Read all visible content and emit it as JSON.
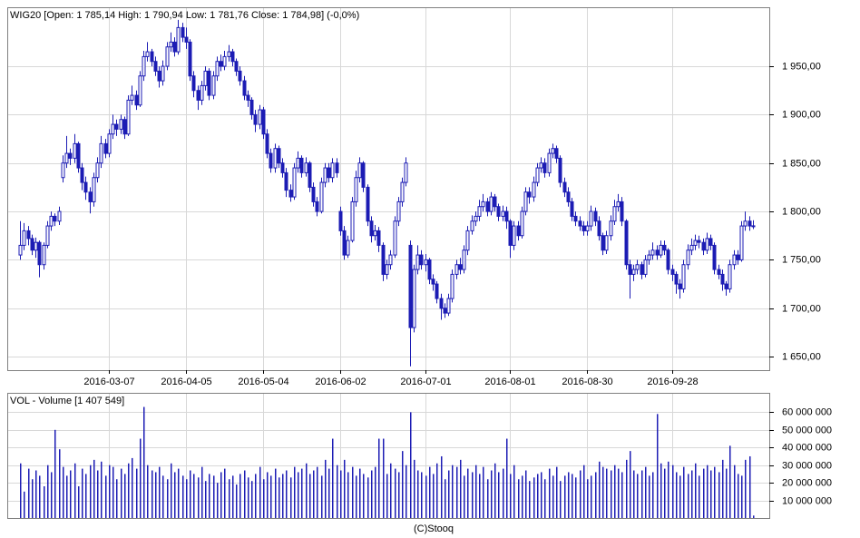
{
  "chart_data": [
    {
      "type": "candlestick",
      "title": "WIG20 [Open: 1 785,14  High: 1 790,94  Low: 1 781,76  Close: 1 784,98] (-0,0%)",
      "color": "#1c1cb4",
      "categories": [
        null,
        null,
        null,
        null,
        null,
        null,
        null,
        null,
        null,
        null,
        null,
        null,
        null,
        null,
        null,
        null,
        null,
        null,
        null,
        null,
        null,
        null,
        null,
        "2016-03-07",
        null,
        null,
        null,
        null,
        null,
        null,
        null,
        null,
        null,
        null,
        null,
        null,
        null,
        null,
        null,
        null,
        null,
        null,
        null,
        "2016-04-05",
        null,
        null,
        null,
        null,
        null,
        null,
        null,
        null,
        null,
        null,
        null,
        null,
        null,
        null,
        null,
        null,
        null,
        null,
        null,
        "2016-05-04",
        null,
        null,
        null,
        null,
        null,
        null,
        null,
        null,
        null,
        null,
        null,
        null,
        null,
        null,
        null,
        null,
        null,
        null,
        null,
        "2016-06-02",
        null,
        null,
        null,
        null,
        null,
        null,
        null,
        null,
        null,
        null,
        null,
        null,
        null,
        null,
        null,
        null,
        null,
        null,
        null,
        null,
        null,
        "2016-07-01",
        null,
        null,
        null,
        null,
        null,
        null,
        null,
        null,
        null,
        null,
        null,
        null,
        null,
        null,
        null,
        null,
        null,
        null,
        null,
        null,
        null,
        "2016-08-01",
        null,
        null,
        null,
        null,
        null,
        null,
        null,
        null,
        null,
        null,
        null,
        null,
        null,
        null,
        null,
        null,
        null,
        null,
        null,
        "2016-08-30",
        null,
        null,
        null,
        null,
        null,
        null,
        null,
        null,
        null,
        null,
        null,
        null,
        null,
        null,
        null,
        null,
        null,
        null,
        null,
        null,
        null,
        "2016-09-28",
        null,
        null,
        null,
        null,
        null,
        null,
        null,
        null,
        null,
        null,
        null,
        null,
        null,
        null,
        null,
        null,
        null,
        null,
        null,
        null,
        null
      ],
      "open": [
        1755,
        1765,
        1780,
        1772,
        1760,
        1768,
        1745,
        1765,
        1785,
        1795,
        1790,
        1835,
        1850,
        1860,
        1855,
        1870,
        1845,
        1830,
        1820,
        1810,
        1835,
        1850,
        1870,
        1860,
        1880,
        1890,
        1885,
        1895,
        1880,
        1915,
        1920,
        1910,
        1940,
        1960,
        1965,
        1955,
        1945,
        1935,
        1950,
        1970,
        1975,
        1965,
        1990,
        1980,
        1975,
        1940,
        1925,
        1915,
        1930,
        1945,
        1920,
        1940,
        1955,
        1950,
        1960,
        1965,
        1955,
        1945,
        1935,
        1920,
        1915,
        1900,
        1890,
        1905,
        1880,
        1860,
        1845,
        1865,
        1850,
        1840,
        1822,
        1815,
        1845,
        1855,
        1840,
        1850,
        1825,
        1810,
        1800,
        1830,
        1845,
        1835,
        1850,
        1800,
        1780,
        1755,
        1770,
        1810,
        1835,
        1850,
        1825,
        1790,
        1775,
        1780,
        1765,
        1735,
        1745,
        1755,
        1790,
        1810,
        1830,
        1765,
        1680,
        1740,
        1755,
        1745,
        1750,
        1730,
        1725,
        1710,
        1700,
        1695,
        1710,
        1735,
        1745,
        1740,
        1760,
        1780,
        1790,
        1795,
        1805,
        1810,
        1800,
        1815,
        1805,
        1795,
        1800,
        1790,
        1765,
        1785,
        1775,
        1800,
        1820,
        1815,
        1830,
        1845,
        1850,
        1840,
        1860,
        1865,
        1855,
        1830,
        1820,
        1810,
        1795,
        1790,
        1785,
        1780,
        1785,
        1800,
        1790,
        1775,
        1760,
        1775,
        1790,
        1805,
        1810,
        1790,
        1745,
        1735,
        1740,
        1745,
        1735,
        1750,
        1755,
        1760,
        1755,
        1765,
        1760,
        1740,
        1735,
        1725,
        1720,
        1745,
        1760,
        1765,
        1770,
        1768,
        1760,
        1772,
        1765,
        1740,
        1735,
        1725,
        1720,
        1745,
        1755,
        1750,
        1785,
        1790,
        1785.14
      ],
      "high": [
        1790,
        1788,
        1785,
        1776,
        1773,
        1770,
        1768,
        1790,
        1800,
        1798,
        1805,
        1858,
        1878,
        1865,
        1880,
        1872,
        1850,
        1836,
        1825,
        1840,
        1856,
        1878,
        1875,
        1885,
        1900,
        1895,
        1900,
        1898,
        1920,
        1930,
        1925,
        1945,
        1966,
        1975,
        1968,
        1960,
        1950,
        1956,
        1975,
        1985,
        1980,
        1998,
        1995,
        1990,
        1978,
        1945,
        1930,
        1935,
        1950,
        1948,
        1945,
        1960,
        1962,
        1966,
        1972,
        1968,
        1958,
        1950,
        1940,
        1925,
        1918,
        1905,
        1910,
        1908,
        1885,
        1865,
        1870,
        1868,
        1855,
        1845,
        1828,
        1850,
        1862,
        1858,
        1856,
        1852,
        1830,
        1815,
        1835,
        1850,
        1850,
        1855,
        1855,
        1805,
        1785,
        1775,
        1815,
        1842,
        1856,
        1852,
        1828,
        1795,
        1786,
        1784,
        1768,
        1750,
        1760,
        1795,
        1815,
        1835,
        1856,
        1770,
        1745,
        1765,
        1760,
        1756,
        1752,
        1735,
        1728,
        1715,
        1705,
        1715,
        1740,
        1750,
        1752,
        1765,
        1785,
        1796,
        1800,
        1812,
        1818,
        1814,
        1820,
        1818,
        1808,
        1806,
        1805,
        1792,
        1790,
        1790,
        1805,
        1825,
        1825,
        1836,
        1850,
        1856,
        1855,
        1865,
        1870,
        1868,
        1858,
        1835,
        1825,
        1814,
        1800,
        1795,
        1790,
        1790,
        1806,
        1804,
        1795,
        1778,
        1780,
        1796,
        1812,
        1818,
        1815,
        1792,
        1750,
        1745,
        1750,
        1748,
        1755,
        1760,
        1768,
        1765,
        1770,
        1770,
        1762,
        1745,
        1738,
        1730,
        1750,
        1766,
        1772,
        1776,
        1775,
        1772,
        1778,
        1776,
        1768,
        1745,
        1740,
        1728,
        1750,
        1760,
        1760,
        1790,
        1800,
        1795,
        1790.94
      ],
      "low": [
        1750,
        1760,
        1765,
        1755,
        1752,
        1732,
        1740,
        1762,
        1780,
        1785,
        1786,
        1830,
        1845,
        1848,
        1850,
        1840,
        1822,
        1812,
        1798,
        1805,
        1830,
        1845,
        1855,
        1856,
        1875,
        1878,
        1880,
        1875,
        1878,
        1910,
        1905,
        1908,
        1935,
        1955,
        1950,
        1940,
        1928,
        1930,
        1946,
        1965,
        1960,
        1962,
        1975,
        1968,
        1935,
        1918,
        1905,
        1910,
        1925,
        1915,
        1916,
        1935,
        1945,
        1946,
        1955,
        1950,
        1940,
        1930,
        1915,
        1908,
        1895,
        1882,
        1885,
        1875,
        1855,
        1840,
        1840,
        1845,
        1835,
        1815,
        1810,
        1812,
        1840,
        1835,
        1836,
        1820,
        1805,
        1795,
        1798,
        1825,
        1830,
        1830,
        1835,
        1775,
        1750,
        1752,
        1768,
        1805,
        1830,
        1820,
        1785,
        1768,
        1770,
        1758,
        1728,
        1730,
        1740,
        1752,
        1785,
        1805,
        1826,
        1640,
        1675,
        1735,
        1740,
        1738,
        1725,
        1718,
        1705,
        1688,
        1690,
        1692,
        1706,
        1730,
        1735,
        1736,
        1755,
        1776,
        1785,
        1790,
        1800,
        1795,
        1796,
        1800,
        1790,
        1790,
        1782,
        1752,
        1760,
        1770,
        1772,
        1796,
        1808,
        1810,
        1826,
        1840,
        1835,
        1836,
        1855,
        1850,
        1825,
        1815,
        1805,
        1790,
        1785,
        1780,
        1775,
        1775,
        1780,
        1785,
        1770,
        1755,
        1756,
        1770,
        1786,
        1800,
        1785,
        1740,
        1710,
        1728,
        1735,
        1730,
        1732,
        1745,
        1750,
        1750,
        1752,
        1755,
        1735,
        1728,
        1715,
        1710,
        1716,
        1740,
        1755,
        1760,
        1762,
        1755,
        1756,
        1760,
        1735,
        1730,
        1718,
        1713,
        1716,
        1740,
        1745,
        1748,
        1780,
        1780,
        1781.76
      ],
      "close": [
        1765,
        1780,
        1772,
        1760,
        1768,
        1745,
        1765,
        1785,
        1795,
        1790,
        1800,
        1850,
        1860,
        1855,
        1870,
        1845,
        1830,
        1820,
        1810,
        1835,
        1850,
        1870,
        1860,
        1880,
        1890,
        1885,
        1895,
        1880,
        1915,
        1920,
        1910,
        1940,
        1960,
        1965,
        1955,
        1945,
        1935,
        1950,
        1970,
        1975,
        1965,
        1990,
        1980,
        1975,
        1940,
        1925,
        1915,
        1930,
        1945,
        1920,
        1940,
        1955,
        1950,
        1960,
        1965,
        1955,
        1945,
        1935,
        1920,
        1915,
        1900,
        1890,
        1905,
        1880,
        1860,
        1845,
        1865,
        1850,
        1840,
        1822,
        1815,
        1845,
        1855,
        1840,
        1850,
        1825,
        1810,
        1800,
        1830,
        1845,
        1835,
        1850,
        1840,
        1780,
        1755,
        1770,
        1810,
        1835,
        1850,
        1825,
        1790,
        1775,
        1780,
        1765,
        1735,
        1745,
        1755,
        1790,
        1810,
        1830,
        1850,
        1680,
        1740,
        1755,
        1745,
        1750,
        1730,
        1725,
        1710,
        1700,
        1695,
        1710,
        1735,
        1745,
        1740,
        1760,
        1780,
        1790,
        1795,
        1805,
        1810,
        1800,
        1815,
        1805,
        1795,
        1800,
        1790,
        1765,
        1785,
        1775,
        1800,
        1820,
        1815,
        1830,
        1845,
        1850,
        1840,
        1860,
        1865,
        1855,
        1830,
        1820,
        1810,
        1795,
        1790,
        1785,
        1780,
        1785,
        1800,
        1790,
        1775,
        1760,
        1775,
        1790,
        1805,
        1810,
        1790,
        1745,
        1735,
        1740,
        1745,
        1735,
        1750,
        1755,
        1760,
        1755,
        1765,
        1760,
        1740,
        1735,
        1725,
        1720,
        1745,
        1760,
        1765,
        1770,
        1768,
        1760,
        1772,
        1765,
        1740,
        1735,
        1725,
        1720,
        1745,
        1755,
        1750,
        1785,
        1790,
        1785,
        1784.98
      ],
      "ylim": [
        1636,
        2011
      ],
      "yticks": [
        {
          "value": 1650,
          "label": "1 650,00"
        },
        {
          "value": 1700,
          "label": "1 700,00"
        },
        {
          "value": 1750,
          "label": "1 750,00"
        },
        {
          "value": 1800,
          "label": "1 800,00"
        },
        {
          "value": 1850,
          "label": "1 850,00"
        },
        {
          "value": 1900,
          "label": "1 900,00"
        },
        {
          "value": 1950,
          "label": "1 950,00"
        }
      ],
      "grid": true
    },
    {
      "type": "bar",
      "title": "VOL - Volume [1 407 549]",
      "color": "#1c1cb4",
      "values": [
        31000000,
        15000000,
        28000000,
        22000000,
        27000000,
        24000000,
        18000000,
        30000000,
        26000000,
        50000000,
        39000000,
        29000000,
        24000000,
        27000000,
        31000000,
        18000000,
        28000000,
        25000000,
        30000000,
        33000000,
        27000000,
        32000000,
        24000000,
        30000000,
        29000000,
        22000000,
        28000000,
        25000000,
        31000000,
        34000000,
        28000000,
        45000000,
        63000000,
        30000000,
        27000000,
        26000000,
        29000000,
        24000000,
        22000000,
        31000000,
        26000000,
        28000000,
        24000000,
        22000000,
        27000000,
        25000000,
        23000000,
        29000000,
        21000000,
        25000000,
        24000000,
        20000000,
        26000000,
        28000000,
        22000000,
        24000000,
        19000000,
        25000000,
        27000000,
        23000000,
        21000000,
        25000000,
        29000000,
        22000000,
        26000000,
        24000000,
        28000000,
        23000000,
        25000000,
        27000000,
        23000000,
        29000000,
        26000000,
        28000000,
        31000000,
        25000000,
        27000000,
        29000000,
        24000000,
        33000000,
        28000000,
        45000000,
        30000000,
        27000000,
        33000000,
        26000000,
        29000000,
        24000000,
        28000000,
        25000000,
        23000000,
        27000000,
        29000000,
        45000000,
        45000000,
        25000000,
        31000000,
        28000000,
        26000000,
        38000000,
        30000000,
        60000000,
        33000000,
        27000000,
        26000000,
        24000000,
        29000000,
        25000000,
        31000000,
        35000000,
        22000000,
        27000000,
        30000000,
        29000000,
        33000000,
        24000000,
        28000000,
        26000000,
        30000000,
        25000000,
        29000000,
        22000000,
        27000000,
        31000000,
        26000000,
        28000000,
        45000000,
        25000000,
        30000000,
        22000000,
        24000000,
        27000000,
        21000000,
        23000000,
        25000000,
        26000000,
        22000000,
        28000000,
        24000000,
        29000000,
        21000000,
        24000000,
        26000000,
        25000000,
        23000000,
        27000000,
        30000000,
        22000000,
        24000000,
        26000000,
        32000000,
        29000000,
        28000000,
        27000000,
        30000000,
        28000000,
        26000000,
        33000000,
        38000000,
        27000000,
        25000000,
        27000000,
        29000000,
        24000000,
        26000000,
        59000000,
        31000000,
        28000000,
        32000000,
        30000000,
        26000000,
        24000000,
        29000000,
        25000000,
        27000000,
        31000000,
        24000000,
        28000000,
        30000000,
        27000000,
        29000000,
        26000000,
        33000000,
        28000000,
        41000000,
        30000000,
        25000000,
        24000000,
        33000000,
        35000000,
        1407549
      ],
      "ylim": [
        0,
        71000000
      ],
      "yticks": [
        {
          "value": 10000000,
          "label": "10 000 000"
        },
        {
          "value": 20000000,
          "label": "20 000 000"
        },
        {
          "value": 30000000,
          "label": "30 000 000"
        },
        {
          "value": 40000000,
          "label": "40 000 000"
        },
        {
          "value": 50000000,
          "label": "50 000 000"
        },
        {
          "value": 60000000,
          "label": "60 000 000"
        }
      ],
      "grid": true
    }
  ],
  "footer": "(C)Stooq"
}
